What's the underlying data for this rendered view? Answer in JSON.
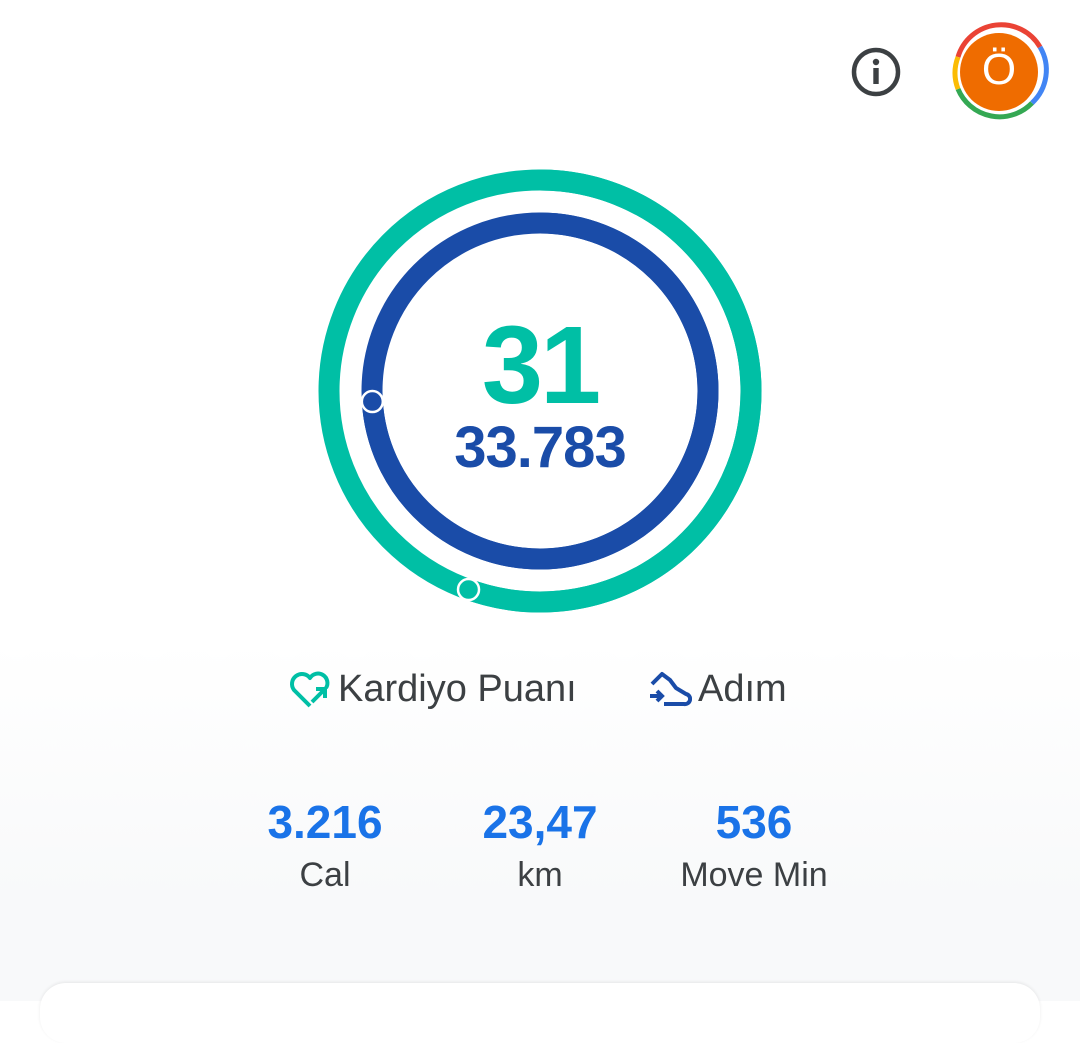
{
  "header": {
    "info_icon": "info-icon",
    "avatar_letter": "Ö",
    "avatar_color": "#ef6c00"
  },
  "rings": {
    "cardio_points": "31",
    "steps": "33.783",
    "cardio_progress": 1.555,
    "steps_progress": 1.74,
    "cardio_color": "#00bfa5",
    "steps_color": "#1a4ca8"
  },
  "legend": {
    "cardio_label": "Kardiyo Puanı",
    "steps_label": "Adım"
  },
  "stats": [
    {
      "value": "3.216",
      "label": "Cal"
    },
    {
      "value": "23,47",
      "label": "km"
    },
    {
      "value": "536",
      "label": "Move Min"
    }
  ]
}
